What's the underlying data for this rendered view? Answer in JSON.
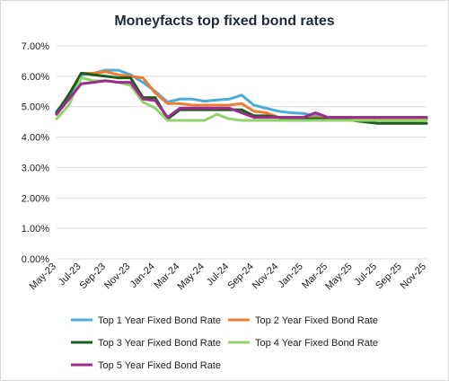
{
  "chart_data": {
    "type": "line",
    "title": "Moneyfacts top fixed bond rates",
    "xlabel": "",
    "ylabel": "",
    "ylim": [
      0,
      0.07
    ],
    "grid": true,
    "legend_position": "bottom",
    "x": [
      "May-23",
      "Jun-23",
      "Jul-23",
      "Aug-23",
      "Sep-23",
      "Oct-23",
      "Nov-23",
      "Dec-23",
      "Jan-24",
      "Feb-24",
      "Mar-24",
      "Apr-24",
      "May-24",
      "Jun-24",
      "Jul-24",
      "Aug-24",
      "Sep-24",
      "Oct-24",
      "Nov-24",
      "Dec-24",
      "Jan-25",
      "Feb-25",
      "Mar-25",
      "Apr-25",
      "May-25",
      "Jun-25",
      "Jul-25",
      "Aug-25",
      "Sep-25",
      "Oct-25",
      "Nov-25"
    ],
    "x_tick_labels": [
      "May-23",
      "Jul-23",
      "Sep-23",
      "Nov-23",
      "Jan-24",
      "Mar-24",
      "May-24",
      "Jul-24",
      "Sep-24",
      "Nov-24",
      "Jan-25",
      "Mar-25",
      "May-25",
      "Jul-25",
      "Sep-25",
      "Nov-25"
    ],
    "y_tick_labels": [
      "0.00%",
      "1.00%",
      "2.00%",
      "3.00%",
      "4.00%",
      "5.00%",
      "6.00%",
      "7.00%"
    ],
    "series": [
      {
        "name": "Top 1 Year Fixed Bond Rate",
        "color": "#4bacd7",
        "values": [
          4.85,
          5.3,
          6.05,
          6.1,
          6.2,
          6.2,
          6.05,
          5.8,
          5.5,
          5.15,
          5.25,
          5.25,
          5.18,
          5.22,
          5.25,
          5.38,
          5.05,
          4.95,
          4.85,
          4.8,
          4.78,
          4.7,
          4.65,
          4.65,
          4.65,
          4.65,
          4.65,
          4.65,
          4.65,
          4.65,
          4.65
        ]
      },
      {
        "name": "Top 2 Year Fixed Bond Rate",
        "color": "#ed7d31",
        "values": [
          4.75,
          5.4,
          6.1,
          6.1,
          6.15,
          6.05,
          6.0,
          5.95,
          5.45,
          5.1,
          5.1,
          5.05,
          5.05,
          5.05,
          5.05,
          5.1,
          4.85,
          4.8,
          4.65,
          4.65,
          4.65,
          4.65,
          4.65,
          4.65,
          4.6,
          4.6,
          4.6,
          4.6,
          4.6,
          4.6,
          4.6
        ]
      },
      {
        "name": "Top 3 Year Fixed Bond Rate",
        "color": "#1e5c1e",
        "values": [
          4.8,
          5.4,
          6.1,
          6.05,
          6.0,
          5.95,
          5.95,
          5.3,
          5.3,
          4.6,
          4.9,
          4.9,
          4.9,
          4.9,
          4.9,
          4.9,
          4.7,
          4.7,
          4.65,
          4.6,
          4.6,
          4.6,
          4.6,
          4.6,
          4.55,
          4.5,
          4.45,
          4.45,
          4.45,
          4.45,
          4.45
        ]
      },
      {
        "name": "Top 4 Year Fixed Bond Rate",
        "color": "#92d36e",
        "values": [
          4.6,
          5.05,
          5.95,
          5.85,
          5.85,
          5.8,
          5.7,
          5.15,
          4.95,
          4.55,
          4.55,
          4.55,
          4.55,
          4.75,
          4.6,
          4.55,
          4.55,
          4.55,
          4.55,
          4.55,
          4.55,
          4.55,
          4.55,
          4.55,
          4.55,
          4.55,
          4.55,
          4.55,
          4.55,
          4.55,
          4.55
        ]
      },
      {
        "name": "Top 5 Year Fixed Bond Rate",
        "color": "#9b2d8f",
        "values": [
          4.75,
          5.25,
          5.75,
          5.8,
          5.85,
          5.8,
          5.8,
          5.25,
          5.2,
          4.65,
          4.95,
          4.95,
          4.95,
          4.95,
          4.95,
          4.8,
          4.65,
          4.65,
          4.65,
          4.65,
          4.65,
          4.8,
          4.65,
          4.65,
          4.65,
          4.65,
          4.65,
          4.65,
          4.65,
          4.65,
          4.65
        ]
      }
    ]
  }
}
